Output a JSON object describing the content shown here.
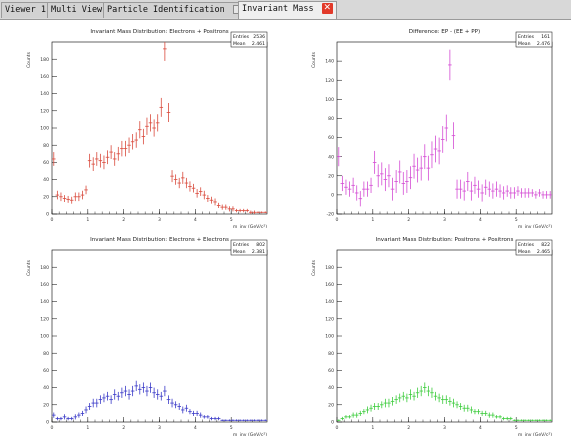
{
  "tabs": [
    {
      "label": "Viewer 1",
      "active": false
    },
    {
      "label": "Multi View",
      "active": false
    },
    {
      "label": "Particle Identification",
      "active": false,
      "icon": "window-icon"
    },
    {
      "label": "Invariant Mass",
      "active": true,
      "icon": "close-icon"
    }
  ],
  "chart_data": [
    {
      "type": "scatter",
      "title": "Invariant Mass Distribution: Electrons + Positrons",
      "xlabel": "m_inv (GeV/c²)",
      "ylabel": "Counts",
      "xlim": [
        0,
        6
      ],
      "ylim": [
        0,
        200
      ],
      "xticks": [
        0,
        1,
        2,
        3,
        4,
        5
      ],
      "yticks": [
        0,
        20,
        40,
        60,
        80,
        100,
        120,
        140,
        160,
        180
      ],
      "color": "#d94a3c",
      "stats": {
        "entries_label": "Entries",
        "entries": "2536",
        "mean_label": "Mean",
        "mean": "2.461"
      },
      "points": [
        [
          0.05,
          64,
          8
        ],
        [
          0.15,
          22,
          5
        ],
        [
          0.25,
          20,
          5
        ],
        [
          0.35,
          18,
          4
        ],
        [
          0.45,
          17,
          4
        ],
        [
          0.55,
          16,
          4
        ],
        [
          0.65,
          20,
          5
        ],
        [
          0.75,
          20,
          5
        ],
        [
          0.85,
          22,
          5
        ],
        [
          0.95,
          28,
          5
        ],
        [
          1.05,
          62,
          8
        ],
        [
          1.15,
          58,
          8
        ],
        [
          1.25,
          64,
          8
        ],
        [
          1.35,
          62,
          8
        ],
        [
          1.45,
          60,
          8
        ],
        [
          1.55,
          66,
          8
        ],
        [
          1.65,
          72,
          8
        ],
        [
          1.75,
          64,
          8
        ],
        [
          1.85,
          70,
          8
        ],
        [
          1.95,
          76,
          9
        ],
        [
          2.05,
          76,
          9
        ],
        [
          2.15,
          80,
          9
        ],
        [
          2.25,
          84,
          9
        ],
        [
          2.35,
          86,
          9
        ],
        [
          2.45,
          98,
          10
        ],
        [
          2.55,
          90,
          9
        ],
        [
          2.65,
          102,
          10
        ],
        [
          2.75,
          106,
          10
        ],
        [
          2.85,
          100,
          10
        ],
        [
          2.95,
          106,
          10
        ],
        [
          3.05,
          124,
          11
        ],
        [
          3.15,
          192,
          14
        ],
        [
          3.25,
          118,
          11
        ],
        [
          3.35,
          44,
          7
        ],
        [
          3.45,
          40,
          6
        ],
        [
          3.55,
          36,
          6
        ],
        [
          3.65,
          42,
          7
        ],
        [
          3.75,
          36,
          6
        ],
        [
          3.85,
          32,
          6
        ],
        [
          3.95,
          30,
          5
        ],
        [
          4.05,
          24,
          5
        ],
        [
          4.15,
          26,
          5
        ],
        [
          4.25,
          22,
          5
        ],
        [
          4.35,
          18,
          4
        ],
        [
          4.45,
          16,
          4
        ],
        [
          4.55,
          14,
          4
        ],
        [
          4.65,
          10,
          3
        ],
        [
          4.75,
          8,
          3
        ],
        [
          4.85,
          8,
          3
        ],
        [
          4.95,
          6,
          3
        ],
        [
          5.05,
          6,
          3
        ],
        [
          5.15,
          4,
          2
        ],
        [
          5.25,
          4,
          2
        ],
        [
          5.35,
          4,
          2
        ],
        [
          5.45,
          4,
          2
        ],
        [
          5.55,
          2,
          2
        ],
        [
          5.65,
          2,
          2
        ],
        [
          5.75,
          2,
          1
        ],
        [
          5.85,
          2,
          1
        ],
        [
          5.95,
          2,
          1
        ]
      ]
    },
    {
      "type": "scatter",
      "title": "Difference: EP - (EE + PP)",
      "xlabel": "m_inv (GeV/c²)",
      "ylabel": "Counts",
      "xlim": [
        0,
        6
      ],
      "ylim": [
        -20,
        160
      ],
      "xticks": [
        0,
        1,
        2,
        3,
        4,
        5
      ],
      "yticks": [
        -20,
        0,
        20,
        40,
        60,
        80,
        100,
        120,
        140
      ],
      "color": "#d44cd4",
      "stats": {
        "entries_label": "Entries",
        "entries": "161",
        "mean_label": "Mean",
        "mean": "2.476"
      },
      "points": [
        [
          0.05,
          40,
          10
        ],
        [
          0.15,
          12,
          8
        ],
        [
          0.25,
          8,
          8
        ],
        [
          0.35,
          6,
          8
        ],
        [
          0.45,
          10,
          8
        ],
        [
          0.55,
          2,
          8
        ],
        [
          0.65,
          -4,
          8
        ],
        [
          0.75,
          6,
          8
        ],
        [
          0.85,
          6,
          8
        ],
        [
          0.95,
          10,
          8
        ],
        [
          1.05,
          34,
          12
        ],
        [
          1.15,
          20,
          12
        ],
        [
          1.25,
          22,
          12
        ],
        [
          1.35,
          16,
          12
        ],
        [
          1.45,
          20,
          12
        ],
        [
          1.55,
          6,
          12
        ],
        [
          1.65,
          14,
          12
        ],
        [
          1.75,
          24,
          12
        ],
        [
          1.85,
          12,
          12
        ],
        [
          1.95,
          14,
          12
        ],
        [
          2.05,
          18,
          12
        ],
        [
          2.15,
          30,
          13
        ],
        [
          2.25,
          26,
          13
        ],
        [
          2.35,
          28,
          13
        ],
        [
          2.45,
          40,
          13
        ],
        [
          2.55,
          28,
          13
        ],
        [
          2.65,
          42,
          14
        ],
        [
          2.75,
          48,
          14
        ],
        [
          2.85,
          46,
          14
        ],
        [
          2.95,
          58,
          14
        ],
        [
          3.05,
          70,
          14
        ],
        [
          3.15,
          136,
          16
        ],
        [
          3.25,
          62,
          14
        ],
        [
          3.35,
          6,
          10
        ],
        [
          3.45,
          6,
          10
        ],
        [
          3.55,
          4,
          10
        ],
        [
          3.65,
          14,
          10
        ],
        [
          3.75,
          4,
          10
        ],
        [
          3.85,
          10,
          9
        ],
        [
          3.95,
          6,
          9
        ],
        [
          4.05,
          2,
          9
        ],
        [
          4.15,
          8,
          8
        ],
        [
          4.25,
          6,
          8
        ],
        [
          4.35,
          4,
          8
        ],
        [
          4.45,
          6,
          8
        ],
        [
          4.55,
          4,
          7
        ],
        [
          4.65,
          2,
          7
        ],
        [
          4.75,
          4,
          6
        ],
        [
          4.85,
          2,
          6
        ],
        [
          4.95,
          2,
          6
        ],
        [
          5.05,
          4,
          5
        ],
        [
          5.15,
          2,
          5
        ],
        [
          5.25,
          2,
          5
        ],
        [
          5.35,
          2,
          5
        ],
        [
          5.45,
          2,
          4
        ],
        [
          5.55,
          0,
          4
        ],
        [
          5.65,
          2,
          4
        ],
        [
          5.75,
          0,
          4
        ],
        [
          5.85,
          0,
          4
        ],
        [
          5.95,
          0,
          4
        ]
      ]
    },
    {
      "type": "scatter",
      "title": "Invariant Mass Distribution: Electrons + Electrons",
      "xlabel": "m_inv (GeV/c²)",
      "ylabel": "Counts",
      "xlim": [
        0,
        6
      ],
      "ylim": [
        0,
        200
      ],
      "xticks": [
        0,
        1,
        2,
        3,
        4,
        5
      ],
      "yticks": [
        0,
        20,
        40,
        60,
        80,
        100,
        120,
        140,
        160,
        180
      ],
      "color": "#3a3ac8",
      "stats": {
        "entries_label": "Entries",
        "entries": "802",
        "mean_label": "Mean",
        "mean": "2.381"
      },
      "points": [
        [
          0.05,
          8,
          3
        ],
        [
          0.15,
          4,
          2
        ],
        [
          0.25,
          4,
          2
        ],
        [
          0.35,
          6,
          3
        ],
        [
          0.45,
          4,
          2
        ],
        [
          0.55,
          4,
          2
        ],
        [
          0.65,
          6,
          3
        ],
        [
          0.75,
          8,
          3
        ],
        [
          0.85,
          10,
          3
        ],
        [
          0.95,
          14,
          4
        ],
        [
          1.05,
          18,
          4
        ],
        [
          1.15,
          22,
          5
        ],
        [
          1.25,
          22,
          5
        ],
        [
          1.35,
          26,
          5
        ],
        [
          1.45,
          28,
          5
        ],
        [
          1.55,
          30,
          5
        ],
        [
          1.65,
          26,
          5
        ],
        [
          1.75,
          32,
          6
        ],
        [
          1.85,
          30,
          5
        ],
        [
          1.95,
          34,
          6
        ],
        [
          2.05,
          36,
          6
        ],
        [
          2.15,
          32,
          6
        ],
        [
          2.25,
          36,
          6
        ],
        [
          2.35,
          42,
          6
        ],
        [
          2.45,
          38,
          6
        ],
        [
          2.55,
          40,
          6
        ],
        [
          2.65,
          36,
          6
        ],
        [
          2.75,
          40,
          6
        ],
        [
          2.85,
          34,
          6
        ],
        [
          2.95,
          32,
          6
        ],
        [
          3.05,
          30,
          5
        ],
        [
          3.15,
          36,
          6
        ],
        [
          3.25,
          26,
          5
        ],
        [
          3.35,
          22,
          5
        ],
        [
          3.45,
          20,
          4
        ],
        [
          3.55,
          18,
          4
        ],
        [
          3.65,
          14,
          4
        ],
        [
          3.75,
          16,
          4
        ],
        [
          3.85,
          12,
          3
        ],
        [
          3.95,
          10,
          3
        ],
        [
          4.05,
          10,
          3
        ],
        [
          4.15,
          8,
          3
        ],
        [
          4.25,
          6,
          2
        ],
        [
          4.35,
          6,
          2
        ],
        [
          4.45,
          4,
          2
        ],
        [
          4.55,
          4,
          2
        ],
        [
          4.65,
          4,
          2
        ],
        [
          4.75,
          2,
          1
        ],
        [
          4.85,
          2,
          1
        ],
        [
          4.95,
          2,
          1
        ],
        [
          5.05,
          2,
          1
        ],
        [
          5.15,
          2,
          1
        ],
        [
          5.25,
          2,
          1
        ],
        [
          5.35,
          2,
          1
        ],
        [
          5.45,
          2,
          1
        ],
        [
          5.55,
          2,
          1
        ],
        [
          5.65,
          2,
          1
        ],
        [
          5.75,
          2,
          1
        ],
        [
          5.85,
          2,
          1
        ],
        [
          5.95,
          2,
          1
        ]
      ]
    },
    {
      "type": "scatter",
      "title": "Invariant Mass Distribution: Positrons + Positrons",
      "xlabel": "m_inv (GeV/c²)",
      "ylabel": "Counts",
      "xlim": [
        0,
        6
      ],
      "ylim": [
        0,
        200
      ],
      "xticks": [
        0,
        1,
        2,
        3,
        4,
        5
      ],
      "yticks": [
        0,
        20,
        40,
        60,
        80,
        100,
        120,
        140,
        160,
        180
      ],
      "color": "#3ccc3c",
      "stats": {
        "entries_label": "Entries",
        "entries": "822",
        "mean_label": "Mean",
        "mean": "2.465"
      },
      "points": [
        [
          0.05,
          2,
          1
        ],
        [
          0.15,
          4,
          2
        ],
        [
          0.25,
          6,
          2
        ],
        [
          0.35,
          6,
          2
        ],
        [
          0.45,
          8,
          3
        ],
        [
          0.55,
          8,
          3
        ],
        [
          0.65,
          10,
          3
        ],
        [
          0.75,
          12,
          3
        ],
        [
          0.85,
          14,
          4
        ],
        [
          0.95,
          16,
          4
        ],
        [
          1.05,
          18,
          4
        ],
        [
          1.15,
          18,
          4
        ],
        [
          1.25,
          20,
          4
        ],
        [
          1.35,
          22,
          5
        ],
        [
          1.45,
          22,
          5
        ],
        [
          1.55,
          24,
          5
        ],
        [
          1.65,
          26,
          5
        ],
        [
          1.75,
          28,
          5
        ],
        [
          1.85,
          30,
          5
        ],
        [
          1.95,
          28,
          5
        ],
        [
          2.05,
          32,
          6
        ],
        [
          2.15,
          30,
          5
        ],
        [
          2.25,
          34,
          6
        ],
        [
          2.35,
          36,
          6
        ],
        [
          2.45,
          40,
          6
        ],
        [
          2.55,
          36,
          6
        ],
        [
          2.65,
          34,
          6
        ],
        [
          2.75,
          30,
          5
        ],
        [
          2.85,
          28,
          5
        ],
        [
          2.95,
          26,
          5
        ],
        [
          3.05,
          26,
          5
        ],
        [
          3.15,
          24,
          5
        ],
        [
          3.25,
          22,
          5
        ],
        [
          3.35,
          20,
          4
        ],
        [
          3.45,
          18,
          4
        ],
        [
          3.55,
          16,
          4
        ],
        [
          3.65,
          16,
          4
        ],
        [
          3.75,
          14,
          4
        ],
        [
          3.85,
          12,
          3
        ],
        [
          3.95,
          12,
          3
        ],
        [
          4.05,
          10,
          3
        ],
        [
          4.15,
          10,
          3
        ],
        [
          4.25,
          8,
          3
        ],
        [
          4.35,
          8,
          3
        ],
        [
          4.45,
          6,
          2
        ],
        [
          4.55,
          6,
          2
        ],
        [
          4.65,
          4,
          2
        ],
        [
          4.75,
          4,
          2
        ],
        [
          4.85,
          4,
          2
        ],
        [
          4.95,
          2,
          1
        ],
        [
          5.05,
          2,
          1
        ],
        [
          5.15,
          2,
          1
        ],
        [
          5.25,
          2,
          1
        ],
        [
          5.35,
          2,
          1
        ],
        [
          5.45,
          2,
          1
        ],
        [
          5.55,
          2,
          1
        ],
        [
          5.65,
          2,
          1
        ],
        [
          5.75,
          2,
          1
        ],
        [
          5.85,
          2,
          1
        ],
        [
          5.95,
          2,
          1
        ]
      ]
    }
  ]
}
